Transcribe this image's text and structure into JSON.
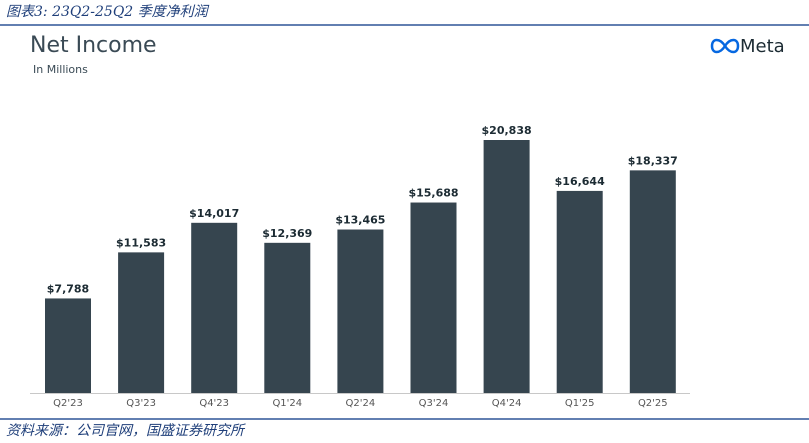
{
  "caption": "图表3: 23Q2-25Q2 季度净利润",
  "source": "资料来源：公司官网，国盛证券研究所",
  "logo": "Meta",
  "chart_data": {
    "type": "bar",
    "title": "Net Income",
    "subtitle": "In Millions",
    "categories": [
      "Q2'23",
      "Q3'23",
      "Q4'23",
      "Q1'24",
      "Q2'24",
      "Q3'24",
      "Q4'24",
      "Q1'25",
      "Q2'25"
    ],
    "values": [
      7788,
      11583,
      14017,
      12369,
      13465,
      15688,
      20838,
      16644,
      18337
    ],
    "value_labels": [
      "$7,788",
      "$11,583",
      "$14,017",
      "$12,369",
      "$13,465",
      "$15,688",
      "$20,838",
      "$16,644",
      "$18,337"
    ],
    "color": "#36454f"
  }
}
